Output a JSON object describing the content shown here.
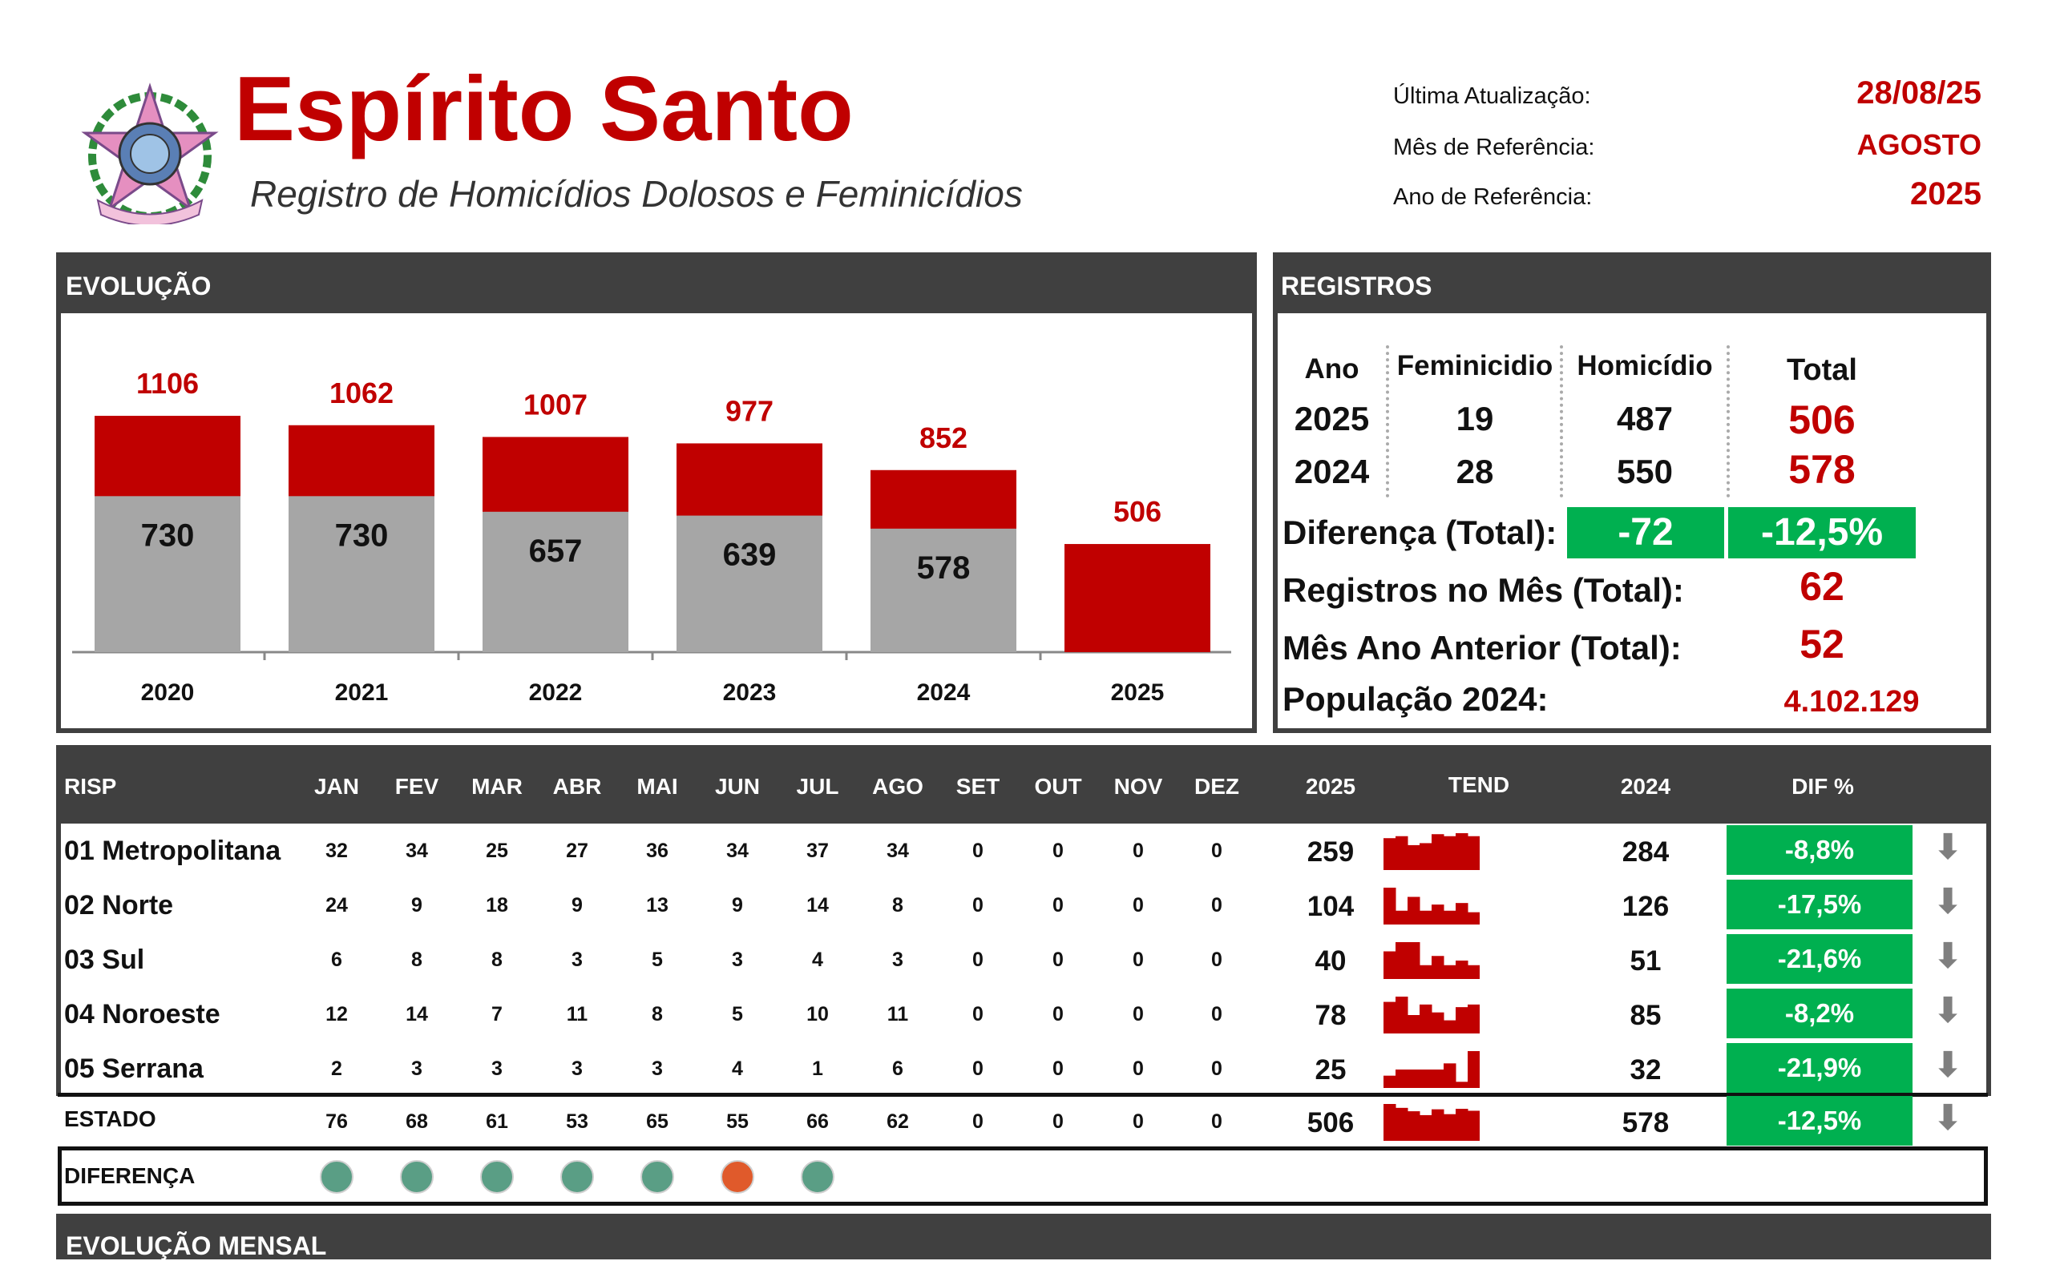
{
  "header": {
    "title": "Espírito Santo",
    "subtitle": "Registro de Homicídios Dolosos e Feminicídios",
    "update_label": "Última Atualização:",
    "update_value": "28/08/25",
    "month_label": "Mês de Referência:",
    "month_value": "AGOSTO",
    "year_label": "Ano de Referência:",
    "year_value": "2025"
  },
  "evolucao": {
    "title": "EVOLUÇÃO",
    "chart_data": {
      "type": "bar",
      "stacked": true,
      "categories": [
        "2020",
        "2021",
        "2022",
        "2023",
        "2024",
        "2025"
      ],
      "totals": [
        1106,
        1062,
        1007,
        977,
        852,
        506
      ],
      "lower": [
        730,
        730,
        657,
        639,
        578,
        null
      ],
      "colors": {
        "upper": "#c00000",
        "lower": "#a6a6a6"
      },
      "total_label_color": "#c00000"
    }
  },
  "registros": {
    "title": "REGISTROS",
    "headers": {
      "ano": "Ano",
      "feminicidio": "Feminicidio",
      "homicidio": "Homicídio",
      "total": "Total"
    },
    "rows": [
      {
        "ano": "2025",
        "feminicidio": "19",
        "homicidio": "487",
        "total": "506"
      },
      {
        "ano": "2024",
        "feminicidio": "28",
        "homicidio": "550",
        "total": "578"
      }
    ],
    "diferenca_label": "Diferença (Total):",
    "diferenca_abs": "-72",
    "diferenca_pct": "-12,5%",
    "mes_label": "Registros no Mês (Total):",
    "mes_value": "62",
    "mes_ant_label": "Mês Ano Anterior (Total):",
    "mes_ant_value": "52",
    "pop_label": "População 2024:",
    "pop_value": "4.102.129"
  },
  "risp": {
    "headers": {
      "risp": "RISP",
      "y2025": "2025",
      "tend": "TEND",
      "y2024": "2024",
      "dif": "DIF %"
    },
    "months": [
      "JAN",
      "FEV",
      "MAR",
      "ABR",
      "MAI",
      "JUN",
      "JUL",
      "AGO",
      "SET",
      "OUT",
      "NOV",
      "DEZ"
    ],
    "rows": [
      {
        "name": "01 Metropolitana",
        "values": [
          "32",
          "34",
          "25",
          "27",
          "36",
          "34",
          "37",
          "34",
          "0",
          "0",
          "0",
          "0"
        ],
        "y2025": "259",
        "y2024": "284",
        "dif": "-8,8%",
        "trend": [
          32,
          34,
          25,
          27,
          36,
          34,
          37,
          34
        ]
      },
      {
        "name": "02 Norte",
        "values": [
          "24",
          "9",
          "18",
          "9",
          "13",
          "9",
          "14",
          "8",
          "0",
          "0",
          "0",
          "0"
        ],
        "y2025": "104",
        "y2024": "126",
        "dif": "-17,5%",
        "trend": [
          24,
          9,
          18,
          9,
          13,
          9,
          14,
          8
        ]
      },
      {
        "name": "03 Sul",
        "values": [
          "6",
          "8",
          "8",
          "3",
          "5",
          "3",
          "4",
          "3",
          "0",
          "0",
          "0",
          "0"
        ],
        "y2025": "40",
        "y2024": "51",
        "dif": "-21,6%",
        "trend": [
          6,
          8,
          8,
          3,
          5,
          3,
          4,
          3
        ]
      },
      {
        "name": "04 Noroeste",
        "values": [
          "12",
          "14",
          "7",
          "11",
          "8",
          "5",
          "10",
          "11",
          "0",
          "0",
          "0",
          "0"
        ],
        "y2025": "78",
        "y2024": "85",
        "dif": "-8,2%",
        "trend": [
          12,
          14,
          7,
          11,
          8,
          5,
          10,
          11
        ]
      },
      {
        "name": "05 Serrana",
        "values": [
          "2",
          "3",
          "3",
          "3",
          "3",
          "4",
          "1",
          "6",
          "0",
          "0",
          "0",
          "0"
        ],
        "y2025": "25",
        "y2024": "32",
        "dif": "-21,9%",
        "trend": [
          2,
          3,
          3,
          3,
          3,
          4,
          1,
          6
        ]
      }
    ],
    "estado": {
      "name": "ESTADO",
      "values": [
        "76",
        "68",
        "61",
        "53",
        "65",
        "55",
        "66",
        "62",
        "0",
        "0",
        "0",
        "0"
      ],
      "y2025": "506",
      "y2024": "578",
      "dif": "-12,5%",
      "trend": [
        76,
        68,
        61,
        53,
        65,
        55,
        66,
        62
      ]
    },
    "diferenca_label": "DIFERENÇA",
    "diferenca_dots": [
      "#5a9e85",
      "#5a9e85",
      "#5a9e85",
      "#5a9e85",
      "#5a9e85",
      "#e05a2b",
      "#5a9e85"
    ],
    "arrow_icon": "down-arrow-icon"
  },
  "evolucao_mensal": {
    "title": "EVOLUÇÃO MENSAL"
  }
}
